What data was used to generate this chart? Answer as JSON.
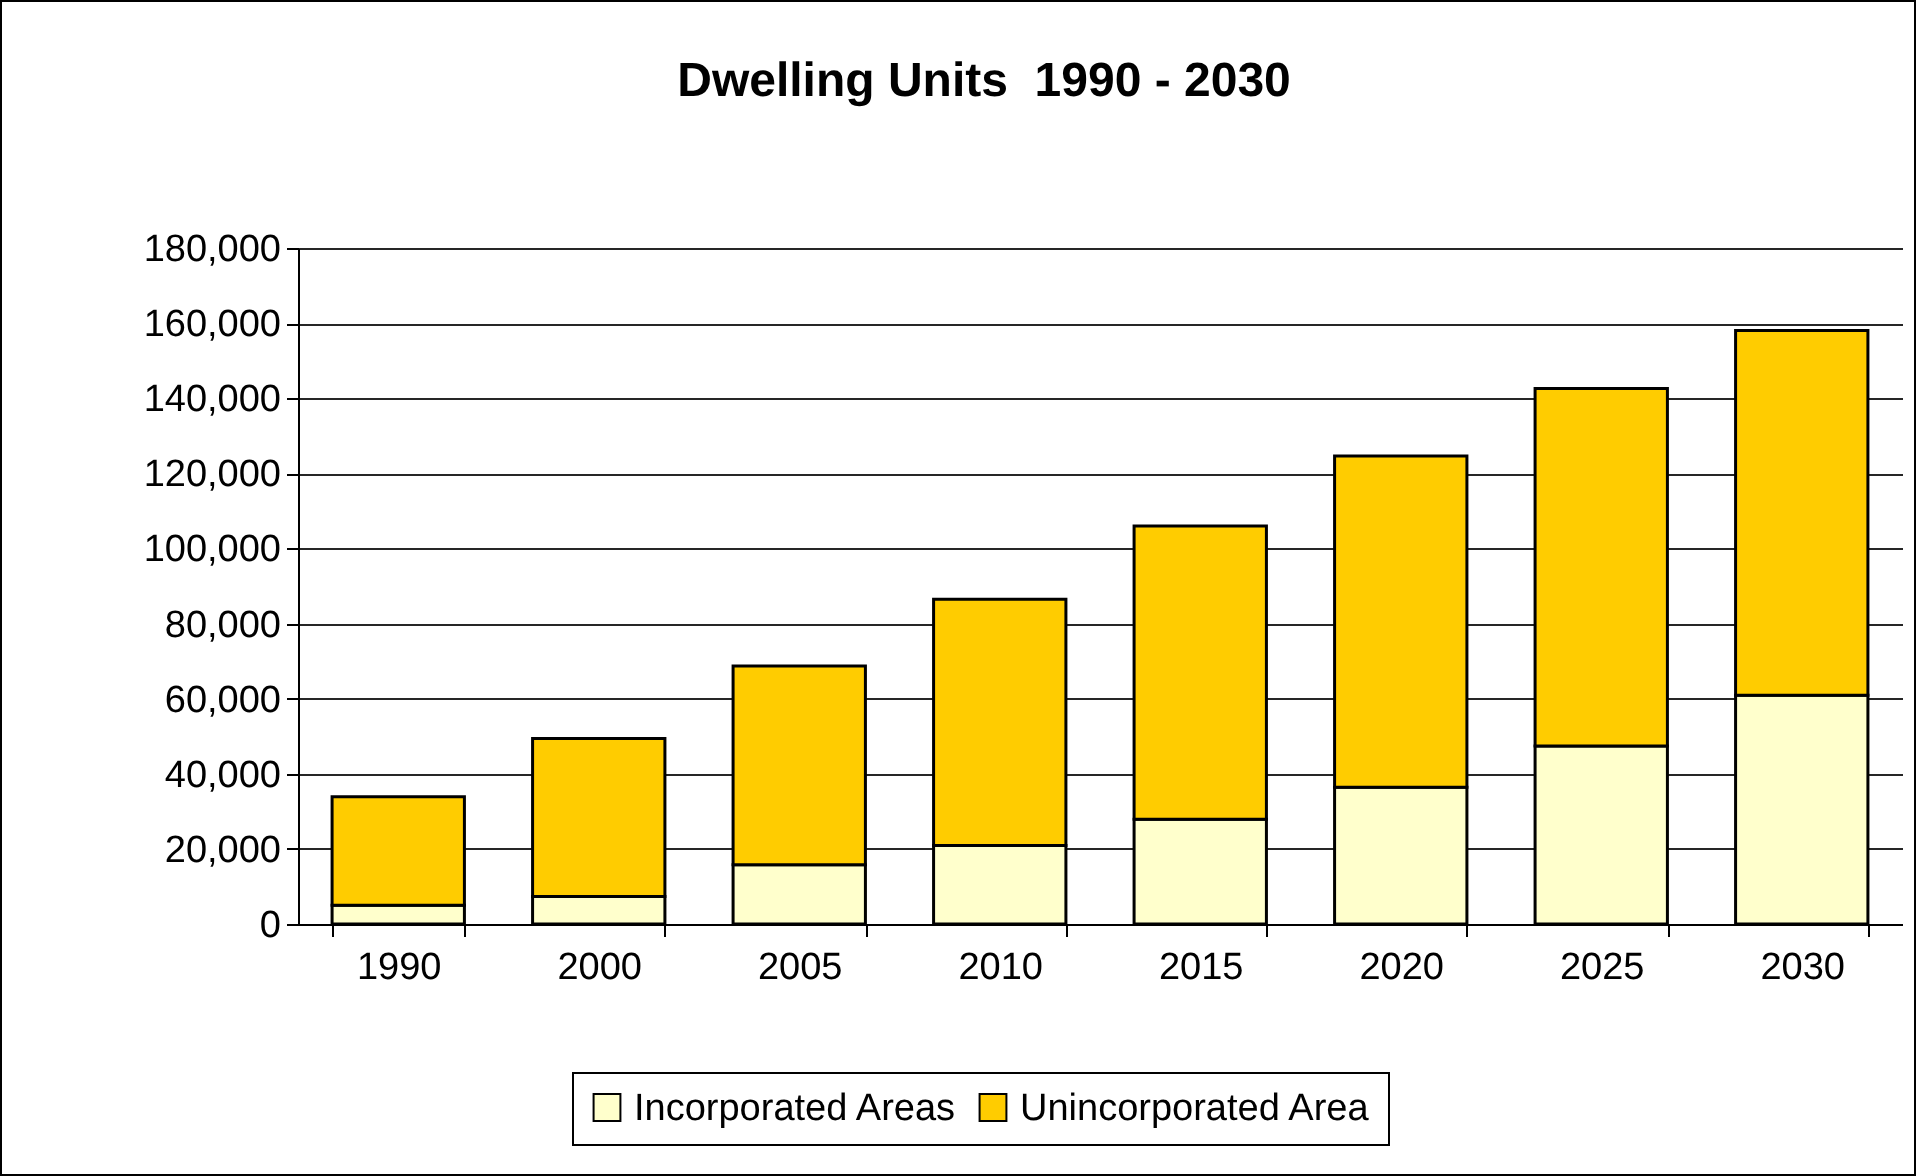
{
  "chart_data": {
    "type": "bar",
    "title": "Dwelling Units  1990 - 2030",
    "stacked": true,
    "categories": [
      "1990",
      "2000",
      "2005",
      "2010",
      "2015",
      "2020",
      "2025",
      "2030"
    ],
    "series": [
      {
        "name": "Incorporated Areas",
        "color": "#ffffcc",
        "values": [
          5000,
          7300,
          15800,
          20900,
          27900,
          36400,
          47400,
          60900
        ]
      },
      {
        "name": "Unincorporated Area",
        "color": "#ffcc00",
        "values": [
          28900,
          42100,
          52900,
          65600,
          78100,
          88200,
          95200,
          97100
        ]
      }
    ],
    "ylim": [
      0,
      180000
    ],
    "yticks": [
      0,
      {
        "value": 20000,
        "label": "20,000"
      },
      {
        "value": 40000,
        "label": "40,000"
      },
      {
        "value": 60000,
        "label": "60,000"
      },
      {
        "value": 80000,
        "label": "80,000"
      },
      {
        "value": 100000,
        "label": "100,000"
      },
      {
        "value": 120000,
        "label": "120,000"
      },
      {
        "value": 140000,
        "label": "140,000"
      },
      {
        "value": 160000,
        "label": "160,000"
      },
      {
        "value": 180000,
        "label": "180,000"
      }
    ],
    "grid": "y",
    "legend": "bottom"
  }
}
